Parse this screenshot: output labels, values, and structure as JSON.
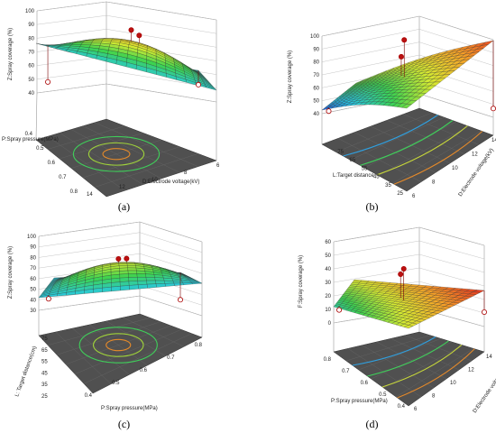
{
  "figure": {
    "title": ""
  },
  "chart_data": [
    {
      "type": "surface3d",
      "caption": "(a)",
      "zlabel": "Z:Spray coverage (%)",
      "xlabel": "P:Spray pressure(MPa)",
      "ylabel": "D:Electrode voltage(kV)",
      "z_ticks": [
        "40",
        "50",
        "60",
        "70",
        "80",
        "90",
        "100"
      ],
      "x_ticks": [
        "0.4",
        "0.5",
        "0.6",
        "0.7",
        "0.8"
      ],
      "y_ticks": [
        "14",
        "12",
        "10",
        "8",
        "6"
      ],
      "zlim": [
        40,
        100
      ],
      "surface": {
        "center_z": 82,
        "edge_low": 55,
        "edge_high": 63
      },
      "design_points": [
        {
          "z": 82,
          "above": true
        },
        {
          "z": 86,
          "above": true
        },
        {
          "z": 48,
          "above": false
        },
        {
          "z": 46,
          "above": false
        }
      ]
    },
    {
      "type": "surface3d",
      "caption": "(b)",
      "zlabel": "Z:Spray coverage (%)",
      "xlabel": "L:Target distance",
      "ylabel": "D:Electrode voltage(kV)",
      "z_ticks": [
        "40",
        "50",
        "60",
        "70",
        "80",
        "90",
        "100"
      ],
      "x_ticks": [
        "75",
        "65",
        "55",
        "45",
        "35",
        "25"
      ],
      "y_ticks": [
        "6",
        "8",
        "10",
        "12",
        "14"
      ],
      "zlim": [
        40,
        100
      ],
      "surface": {
        "low_corner_z": 42,
        "high_corner_z": 96
      },
      "design_points": [
        {
          "z": 97,
          "above": true
        },
        {
          "z": 84,
          "above": true
        },
        {
          "z": 42,
          "above": false
        },
        {
          "z": 44,
          "above": false
        }
      ]
    },
    {
      "type": "surface3d",
      "caption": "(c)",
      "zlabel": "Z:Spray coverage (%)",
      "xlabel": "P:Spray pressure(MPa)",
      "ylabel": "L: Target distance(cm)",
      "z_ticks": [
        "30",
        "40",
        "50",
        "60",
        "70",
        "80",
        "90",
        "100"
      ],
      "x_ticks": [
        "0.4",
        "0.5",
        "0.6",
        "0.7",
        "0.8"
      ],
      "y_ticks": [
        "25",
        "35",
        "45",
        "55",
        "65",
        "75"
      ],
      "zlim": [
        30,
        100
      ],
      "surface": {
        "center_z": 72,
        "edge_low": 45,
        "edge_high": 60
      },
      "design_points": [
        {
          "z": 72,
          "above": true
        },
        {
          "z": 60,
          "above": true
        },
        {
          "z": 45,
          "above": false
        },
        {
          "z": 40,
          "above": false
        }
      ]
    },
    {
      "type": "surface3d",
      "caption": "(d)",
      "zlabel": "F:Spray coverage (%)",
      "xlabel": "P:Spray pressure(MPa)",
      "ylabel": "D:Electrode voltage(kV)",
      "z_ticks": [
        "0",
        "10",
        "20",
        "30",
        "40",
        "50",
        "60"
      ],
      "x_ticks": [
        "0.8",
        "0.7",
        "0.6",
        "0.5",
        "0.4"
      ],
      "y_ticks": [
        "6",
        "8",
        "10",
        "12",
        "14"
      ],
      "zlim": [
        0,
        60
      ],
      "surface": {
        "low_corner_z": 18,
        "high_corner_z": 58
      },
      "design_points": [
        {
          "z": 40,
          "above": true
        },
        {
          "z": 36,
          "above": true
        },
        {
          "z": 20,
          "above": false
        },
        {
          "z": 8,
          "above": false
        }
      ]
    }
  ]
}
